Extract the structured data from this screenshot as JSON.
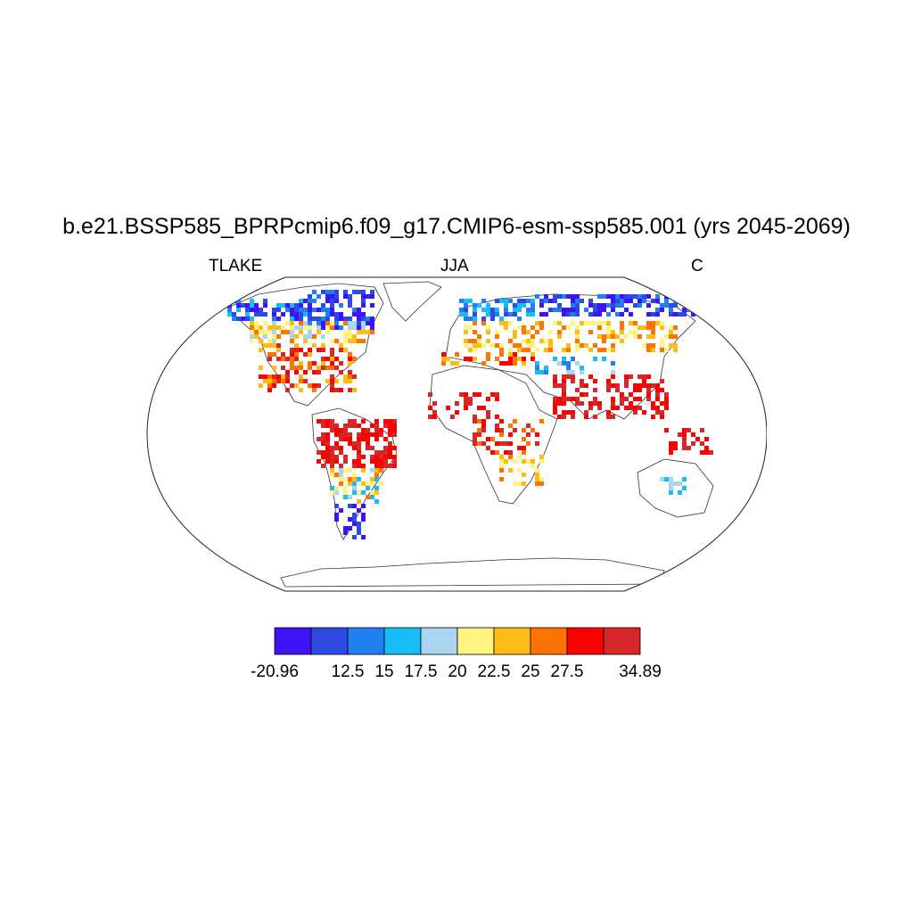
{
  "figure": {
    "title": "b.e21.BSSP585_BPRPcmip6.f09_g17.CMIP6-esm-ssp585.001 (yrs 2045-2069)",
    "left_label": "TLAKE",
    "center_label": "JJA",
    "right_label": "C"
  },
  "colorbar": {
    "colors": [
      "#3c14f5",
      "#2d4be3",
      "#2080f0",
      "#17bef5",
      "#a8d6f0",
      "#fff482",
      "#ffbd14",
      "#ff7300",
      "#ff0000",
      "#d62828"
    ],
    "labels": [
      "-20.96",
      "",
      "12.5",
      "15",
      "17.5",
      "20",
      "22.5",
      "25",
      "27.5",
      "",
      "34.89"
    ]
  },
  "legend_items": []
}
